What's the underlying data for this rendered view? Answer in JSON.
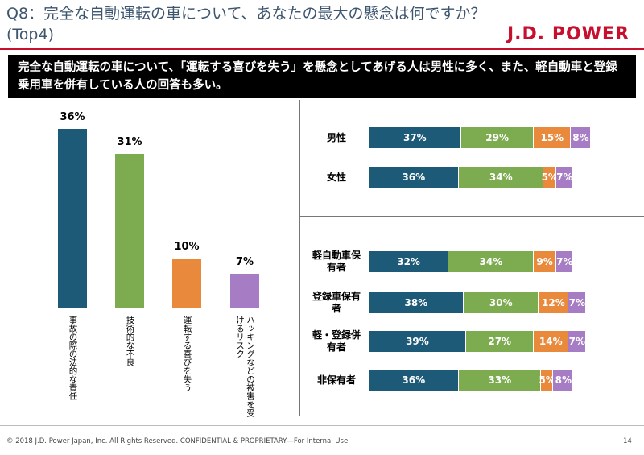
{
  "slide": {
    "title": "Q8：完全な自動運転の車について、あなたの最大の懸念は何ですか？ (Top4)",
    "logo": "J.D. POWER",
    "banner": "完全な自動運転の車について、「運転する喜びを失う」を懸念としてあげる人は男性に多く、また、軽自動車と登録乗用車を併有している人の回答も多い。",
    "footer": "© 2018 J.D. Power Japan, Inc. All Rights Reserved. CONFIDENTIAL & PROPRIETARY—For Internal Use.",
    "page": "14"
  },
  "chart_data": [
    {
      "type": "bar",
      "categories": [
        "事故の際の法的な責任",
        "技術的な不良",
        "運転する喜びを失う",
        "ハッキングなどの被害を受けるリスク"
      ],
      "values": [
        36,
        31,
        10,
        7
      ],
      "value_labels": [
        "36%",
        "31%",
        "10%",
        "7%"
      ],
      "colors": [
        "#1d5a78",
        "#7dab4f",
        "#e8893c",
        "#a67cc4"
      ]
    },
    {
      "type": "stacked-bar-h",
      "categories": [
        "男性",
        "女性"
      ],
      "series": [
        {
          "color": "#1d5a78",
          "values": [
            37,
            36
          ],
          "value_labels": [
            "37%",
            "36%"
          ]
        },
        {
          "color": "#7dab4f",
          "values": [
            29,
            34
          ],
          "value_labels": [
            "29%",
            "34%"
          ]
        },
        {
          "color": "#e8893c",
          "values": [
            15,
            5
          ],
          "value_labels": [
            "15%",
            "5%"
          ]
        },
        {
          "color": "#a67cc4",
          "values": [
            8,
            7
          ],
          "value_labels": [
            "8%",
            "7%"
          ]
        }
      ]
    },
    {
      "type": "stacked-bar-h",
      "categories": [
        "軽自動車保有者",
        "登録車保有者",
        "軽・登録併有者",
        "非保有者"
      ],
      "series": [
        {
          "color": "#1d5a78",
          "values": [
            32,
            38,
            39,
            36
          ],
          "value_labels": [
            "32%",
            "38%",
            "39%",
            "36%"
          ]
        },
        {
          "color": "#7dab4f",
          "values": [
            34,
            30,
            27,
            33
          ],
          "value_labels": [
            "34%",
            "30%",
            "27%",
            "33%"
          ]
        },
        {
          "color": "#e8893c",
          "values": [
            9,
            12,
            14,
            5
          ],
          "value_labels": [
            "9%",
            "12%",
            "14%",
            "5%"
          ]
        },
        {
          "color": "#a67cc4",
          "values": [
            7,
            7,
            7,
            8
          ],
          "value_labels": [
            "7%",
            "7%",
            "7%",
            "8%"
          ]
        }
      ]
    }
  ]
}
